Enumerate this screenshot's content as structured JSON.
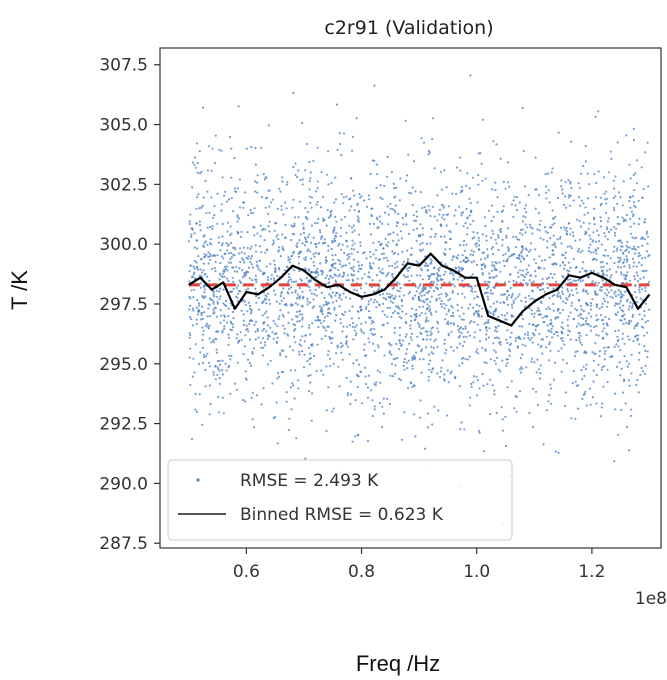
{
  "chart_data": {
    "type": "scatter",
    "title": "c2r91 (Validation)",
    "xlabel": "Freq /Hz",
    "ylabel": "T /K",
    "x_offset_label": "1e8",
    "xlim": [
      0.45,
      1.32
    ],
    "ylim": [
      287.3,
      308.2
    ],
    "x_ticks": [
      0.6,
      0.8,
      1.0,
      1.2
    ],
    "x_tick_labels": [
      "0.6",
      "0.8",
      "1.0",
      "1.2"
    ],
    "y_ticks": [
      287.5,
      290.0,
      292.5,
      295.0,
      297.5,
      300.0,
      302.5,
      305.0,
      307.5
    ],
    "y_tick_labels": [
      "287.5",
      "290.0",
      "292.5",
      "295.0",
      "297.5",
      "300.0",
      "302.5",
      "305.0",
      "307.5"
    ],
    "grid": false,
    "legend_position": "lower-left",
    "series": [
      {
        "name": "RMSE = 2.493 K",
        "kind": "scatter",
        "color": "#4a7fc0",
        "x_range": [
          0.5,
          1.3
        ],
        "center": 298.3,
        "spread_sd": 2.493,
        "n_points": 3500
      },
      {
        "name": "Binned RMSE = 0.623 K",
        "kind": "line",
        "color": "#000000",
        "x": [
          0.5,
          0.52,
          0.54,
          0.56,
          0.58,
          0.6,
          0.62,
          0.64,
          0.66,
          0.68,
          0.7,
          0.72,
          0.74,
          0.76,
          0.78,
          0.8,
          0.82,
          0.84,
          0.86,
          0.88,
          0.9,
          0.92,
          0.94,
          0.96,
          0.98,
          1.0,
          1.02,
          1.04,
          1.06,
          1.08,
          1.1,
          1.12,
          1.14,
          1.16,
          1.18,
          1.2,
          1.22,
          1.24,
          1.26,
          1.28,
          1.3
        ],
        "values": [
          298.3,
          298.6,
          298.1,
          298.4,
          297.3,
          298.0,
          297.9,
          298.2,
          298.6,
          299.1,
          298.9,
          298.5,
          298.2,
          298.3,
          298.0,
          297.8,
          297.9,
          298.1,
          298.6,
          299.2,
          299.1,
          299.6,
          299.1,
          298.9,
          298.6,
          298.6,
          297.0,
          296.8,
          296.6,
          297.2,
          297.6,
          297.9,
          298.1,
          298.7,
          298.6,
          298.8,
          298.6,
          298.3,
          298.2,
          297.3,
          297.9
        ]
      },
      {
        "name": "",
        "kind": "hline",
        "color": "#e0443c",
        "value": 298.3
      }
    ]
  }
}
